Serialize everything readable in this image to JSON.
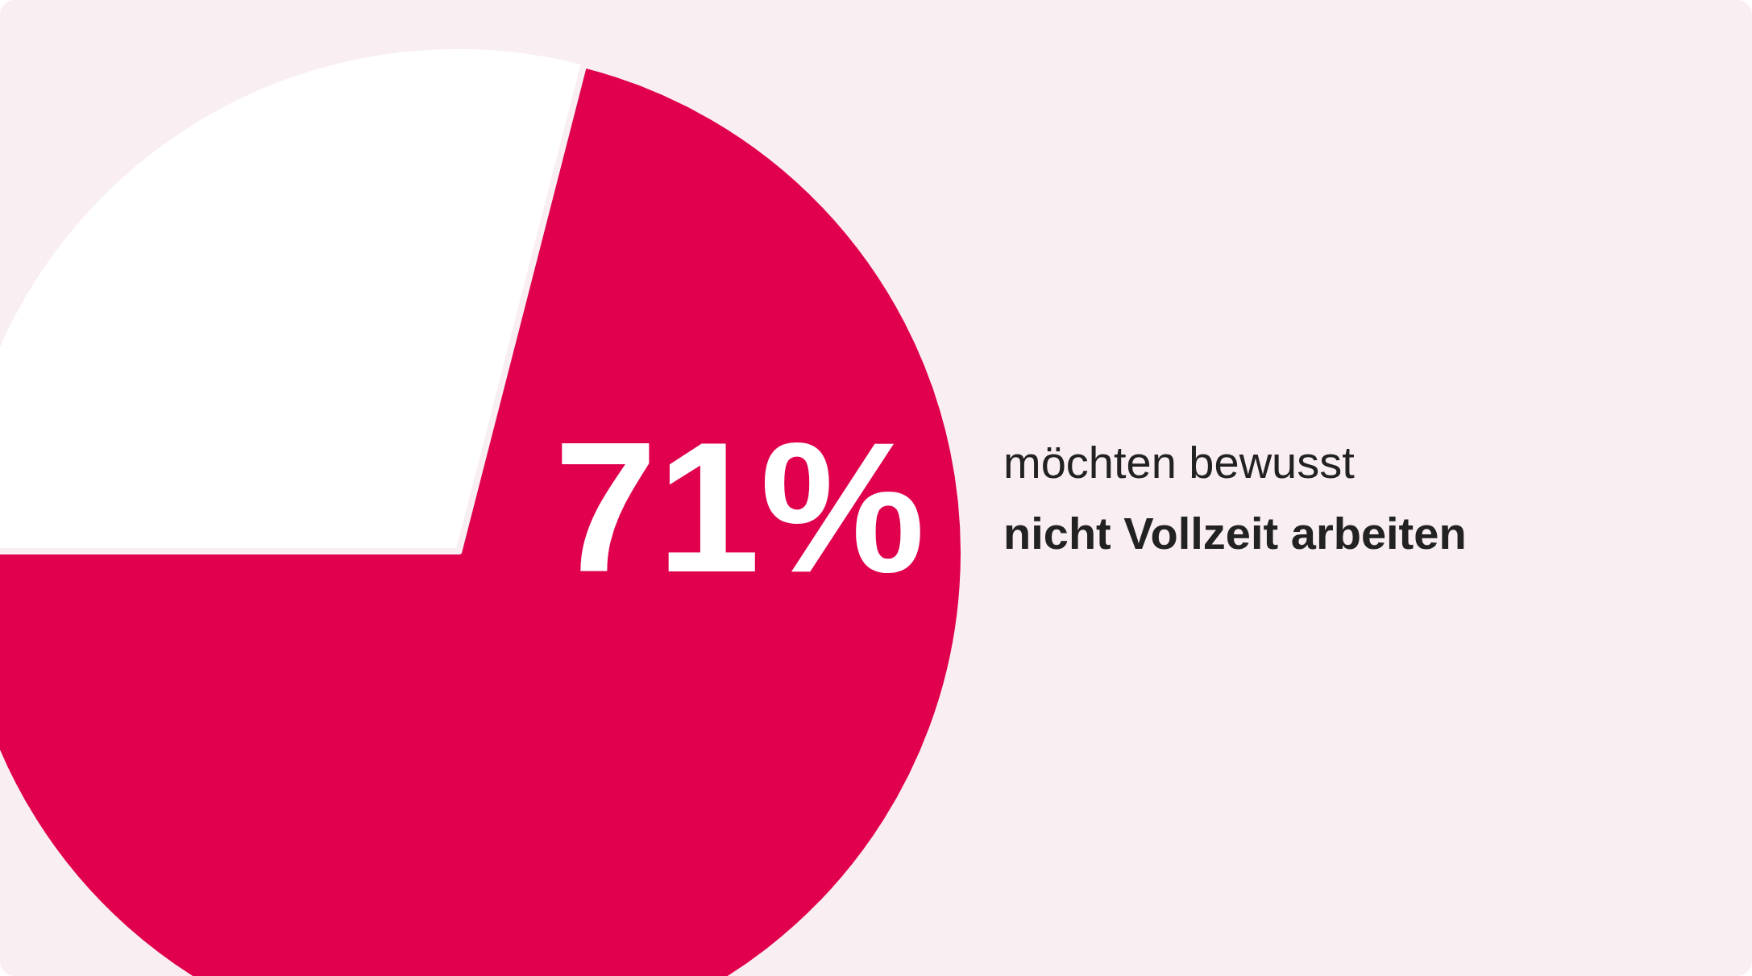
{
  "chart_data": {
    "type": "pie",
    "categories": [
      null,
      null
    ],
    "values": [
      71,
      29
    ],
    "colors": [
      "#e0004d",
      "#ffffff"
    ],
    "value_labels": [
      "71%",
      null
    ],
    "annotations": [
      "möchten bewusst",
      "nicht Vollzeit arbeiten"
    ],
    "legend": false
  }
}
